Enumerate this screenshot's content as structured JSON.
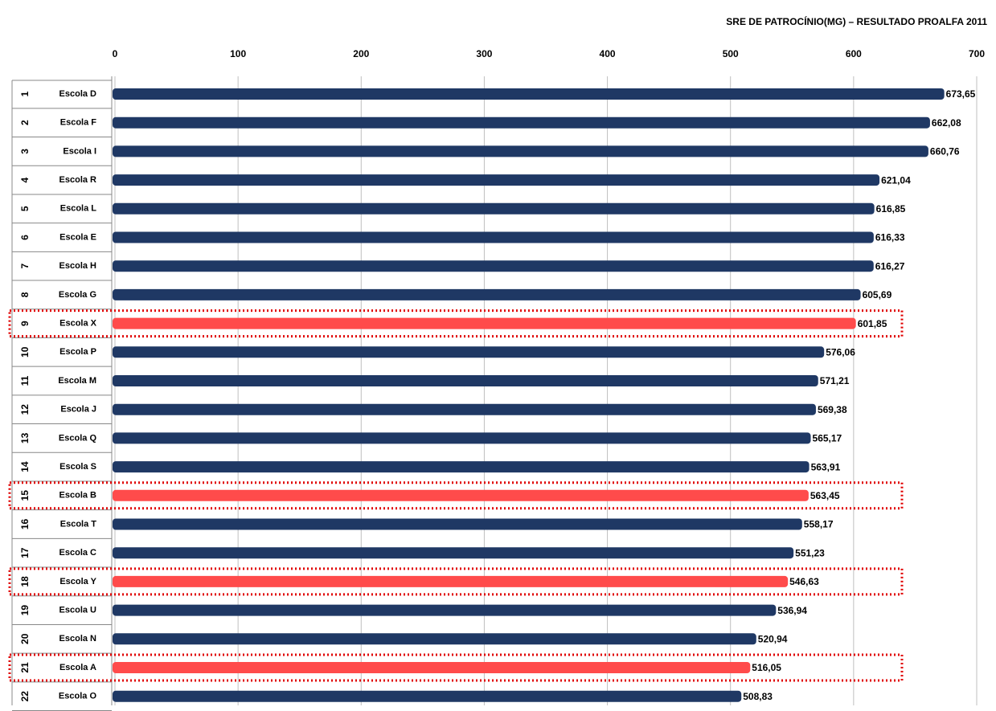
{
  "chart_data": {
    "type": "bar",
    "orientation": "horizontal",
    "title": "SRE DE PATROCÍNIO(MG) – RESULTADO PROALFA 2011",
    "ranks": [
      1,
      2,
      3,
      4,
      5,
      6,
      7,
      8,
      9,
      10,
      11,
      12,
      13,
      14,
      15,
      16,
      17,
      18,
      19,
      20,
      21,
      22
    ],
    "categories": [
      "Escola D",
      "Escola F",
      "Escola I",
      "Escola R",
      "Escola L",
      "Escola E",
      "Escola H",
      "Escola G",
      "Escola X",
      "Escola P",
      "Escola M",
      "Escola J",
      "Escola Q",
      "Escola S",
      "Escola B",
      "Escola T",
      "Escola C",
      "Escola Y",
      "Escola U",
      "Escola N",
      "Escola A",
      "Escola O"
    ],
    "values": [
      673.65,
      662.08,
      660.76,
      621.04,
      616.85,
      616.33,
      616.27,
      605.69,
      601.85,
      576.06,
      571.21,
      569.38,
      565.17,
      563.91,
      563.45,
      558.17,
      551.23,
      546.63,
      536.94,
      520.94,
      516.05,
      508.83
    ],
    "value_labels": [
      "673,65",
      "662,08",
      "660,76",
      "621,04",
      "616,85",
      "616,33",
      "616,27",
      "605,69",
      "601,85",
      "576,06",
      "571,21",
      "569,38",
      "565,17",
      "563,91",
      "563,45",
      "558,17",
      "551,23",
      "546,63",
      "536,94",
      "520,94",
      "516,05",
      "508,83"
    ],
    "colors": [
      "#1f3864",
      "#1f3864",
      "#1f3864",
      "#1f3864",
      "#1f3864",
      "#1f3864",
      "#1f3864",
      "#1f3864",
      "#ff4b4b",
      "#1f3864",
      "#1f3864",
      "#1f3864",
      "#1f3864",
      "#1f3864",
      "#ff4b4b",
      "#1f3864",
      "#1f3864",
      "#ff4b4b",
      "#1f3864",
      "#1f3864",
      "#ff4b4b",
      "#1f3864"
    ],
    "highlighted": [
      false,
      false,
      false,
      false,
      false,
      false,
      false,
      false,
      true,
      false,
      false,
      false,
      false,
      false,
      true,
      false,
      false,
      true,
      false,
      false,
      true,
      false
    ],
    "highlight_box_color": "#e00000",
    "xlim": [
      0,
      700
    ],
    "xticks": [
      0,
      100,
      200,
      300,
      400,
      500,
      600,
      700
    ],
    "grid": true
  }
}
